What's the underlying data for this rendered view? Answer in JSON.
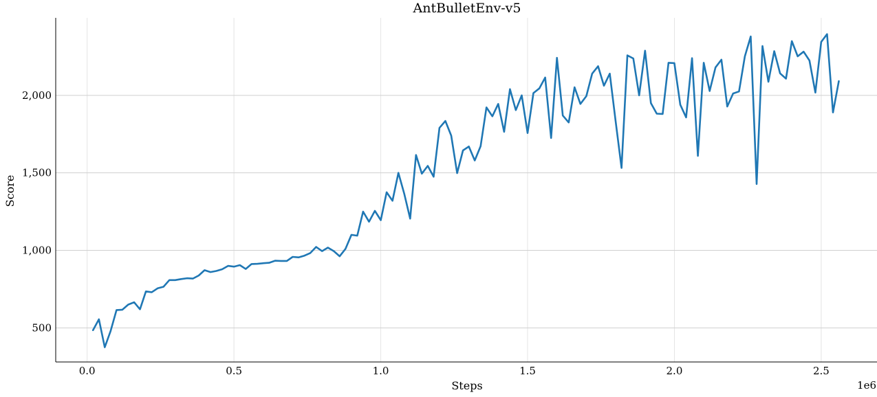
{
  "chart_data": {
    "type": "line",
    "title": "AntBulletEnv-v5",
    "xlabel": "Steps",
    "ylabel": "Score",
    "x_offset_label": "1e6",
    "xlim": [
      -0.107,
      2.69
    ],
    "ylim": [
      280,
      2500
    ],
    "xticks": [
      0.0,
      0.5,
      1.0,
      1.5,
      2.0,
      2.5
    ],
    "xtick_labels": [
      "0.0",
      "0.5",
      "1.0",
      "1.5",
      "2.0",
      "2.5"
    ],
    "yticks": [
      500,
      1000,
      1500,
      2000
    ],
    "ytick_labels": [
      "500",
      "1,000",
      "1,500",
      "2,000"
    ],
    "grid": true,
    "line_color": "#1f77b4",
    "series": [
      {
        "x": [
          0.02,
          0.04,
          0.06,
          0.08,
          0.1,
          0.12,
          0.14,
          0.16,
          0.18,
          0.2,
          0.22,
          0.24,
          0.26,
          0.28,
          0.3,
          0.32,
          0.34,
          0.36,
          0.38,
          0.4,
          0.42,
          0.44,
          0.46,
          0.48,
          0.5,
          0.52,
          0.54,
          0.56,
          0.58,
          0.6,
          0.62,
          0.64,
          0.66,
          0.68,
          0.7,
          0.72,
          0.74,
          0.76,
          0.78,
          0.8,
          0.82,
          0.84,
          0.86,
          0.88,
          0.9,
          0.92,
          0.94,
          0.96,
          0.98,
          1.0,
          1.02,
          1.04,
          1.06,
          1.08,
          1.1,
          1.12,
          1.14,
          1.16,
          1.18,
          1.2,
          1.22,
          1.24,
          1.26,
          1.28,
          1.3,
          1.32,
          1.34,
          1.36,
          1.38,
          1.4,
          1.42,
          1.44,
          1.46,
          1.48,
          1.5,
          1.52,
          1.54,
          1.56,
          1.58,
          1.6,
          1.62,
          1.64,
          1.66,
          1.68,
          1.7,
          1.72,
          1.74,
          1.76,
          1.78,
          1.8,
          1.82,
          1.84,
          1.86,
          1.88,
          1.9,
          1.92,
          1.94,
          1.96,
          1.98,
          2.0,
          2.02,
          2.04,
          2.06,
          2.08,
          2.1,
          2.12,
          2.14,
          2.16,
          2.18,
          2.2,
          2.22,
          2.24,
          2.26,
          2.28,
          2.3,
          2.32,
          2.34,
          2.36,
          2.38,
          2.4,
          2.42,
          2.44,
          2.46,
          2.48,
          2.5,
          2.52,
          2.54,
          2.56
        ],
        "y": [
          485,
          555,
          375,
          480,
          615,
          617,
          650,
          665,
          620,
          735,
          730,
          755,
          765,
          808,
          808,
          815,
          820,
          818,
          838,
          872,
          860,
          867,
          878,
          900,
          895,
          905,
          880,
          912,
          913,
          917,
          920,
          933,
          932,
          932,
          958,
          955,
          966,
          983,
          1022,
          995,
          1018,
          995,
          962,
          1010,
          1100,
          1095,
          1250,
          1185,
          1255,
          1195,
          1375,
          1320,
          1500,
          1365,
          1205,
          1615,
          1495,
          1545,
          1475,
          1790,
          1835,
          1740,
          1498,
          1645,
          1670,
          1580,
          1672,
          1922,
          1865,
          1945,
          1765,
          2040,
          1905,
          2000,
          1757,
          2015,
          2045,
          2115,
          1725,
          2242,
          1870,
          1825,
          2052,
          1945,
          1995,
          2140,
          2188,
          2062,
          2140,
          1830,
          1532,
          2258,
          2238,
          2000,
          2288,
          1950,
          1882,
          1880,
          2210,
          2208,
          1940,
          1858,
          2240,
          1610,
          2210,
          2028,
          2180,
          2230,
          1928,
          2012,
          2025,
          2252,
          2380,
          1428,
          2318,
          2088,
          2285,
          2142,
          2108,
          2350,
          2252,
          2282,
          2225,
          2018,
          2345,
          2395,
          1890,
          2092
        ]
      }
    ]
  }
}
